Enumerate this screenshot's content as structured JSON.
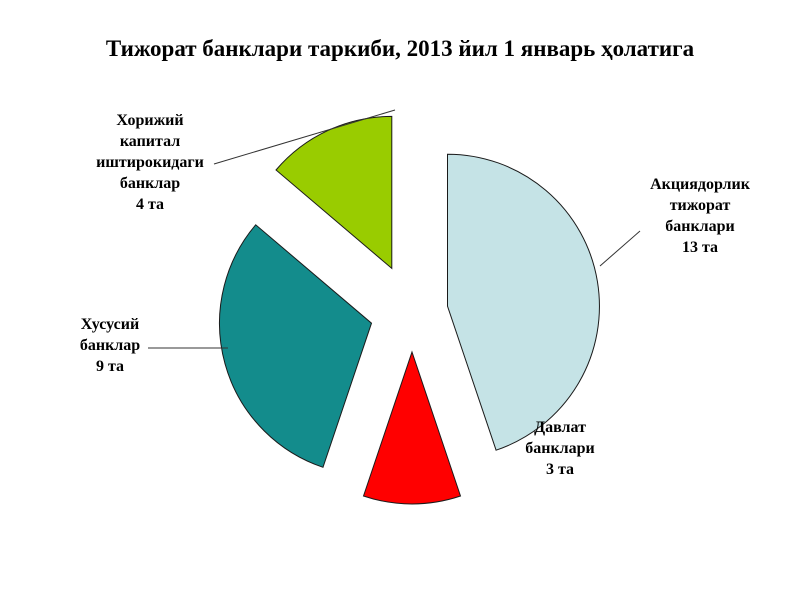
{
  "title": "Тижорат банклари таркиби, 2013 йил 1 январь ҳолатига",
  "chart_data": {
    "type": "pie",
    "title": "Тижорат банклари таркиби, 2013 йил 1 январь ҳолатига",
    "unit": "та",
    "slices": [
      {
        "label_lines": [
          "Акциядорлик",
          "тижорат",
          "банклари"
        ],
        "value": 13,
        "value_text": "13 та",
        "color": "#c5e3e6"
      },
      {
        "label_lines": [
          "Давлат",
          "банклари"
        ],
        "value": 3,
        "value_text": "3 та",
        "color": "#ff0000"
      },
      {
        "label_lines": [
          "Хусусий",
          "банклар"
        ],
        "value": 9,
        "value_text": "9 та",
        "color": "#138c8c"
      },
      {
        "label_lines": [
          "Хорижий",
          "капитал",
          "иштирокидаги",
          "банклар"
        ],
        "value": 4,
        "value_text": "4 та",
        "color": "#99cc00"
      }
    ],
    "legend": "none",
    "exploded": true
  }
}
